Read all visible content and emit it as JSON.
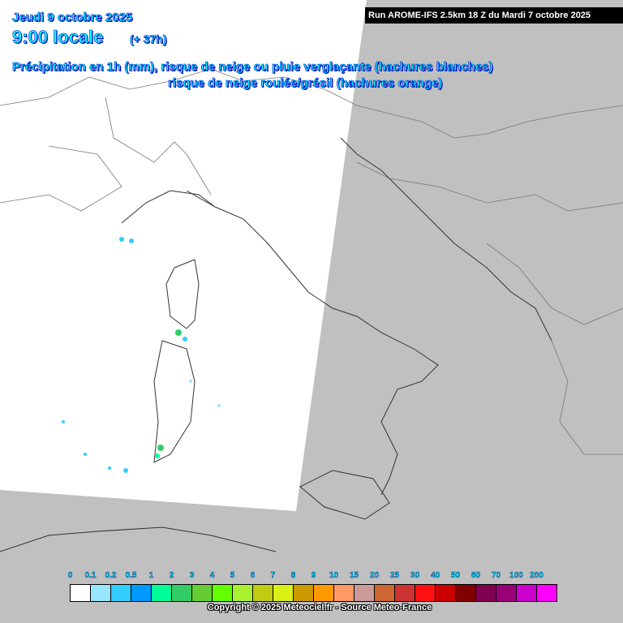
{
  "header": {
    "date": "Jeudi 9 octobre 2025",
    "time": "9:00 locale",
    "lead_time": "(+ 37h)",
    "title_line1": "Précipitation en 1h (mm), risque de neige ou pluie verglaçante (hachures blanches)",
    "title_line2": "risque de neige roulée/grésil (hachures orange)",
    "run_info": "Run AROME-IFS 2.5km 18 Z du Mardi 7 octobre 2025"
  },
  "legend": {
    "labels": [
      "0",
      "0.1",
      "0.2",
      "0.5",
      "1",
      "2",
      "3",
      "4",
      "5",
      "6",
      "7",
      "8",
      "9",
      "10",
      "15",
      "20",
      "25",
      "30",
      "40",
      "50",
      "60",
      "70",
      "100",
      "200"
    ],
    "colors": [
      "#ffffff",
      "#99e6ff",
      "#33ccff",
      "#0099ff",
      "#00ff99",
      "#33cc66",
      "#66cc33",
      "#66ff00",
      "#a8f030",
      "#bfcc11",
      "#d9f016",
      "#cc9900",
      "#ff9900",
      "#ff9966",
      "#cc9999",
      "#cc6633",
      "#cc3333",
      "#ff1111",
      "#cc0000",
      "#800000",
      "#800050",
      "#990077",
      "#cc00cc",
      "#ff00ff"
    ]
  },
  "copyright": "Copyright © 2025 Meteociel.fr - Source Meteo-France",
  "colors": {
    "domain": "#ffffff",
    "outside": "#c0c0c0",
    "title": "#00ffff"
  }
}
